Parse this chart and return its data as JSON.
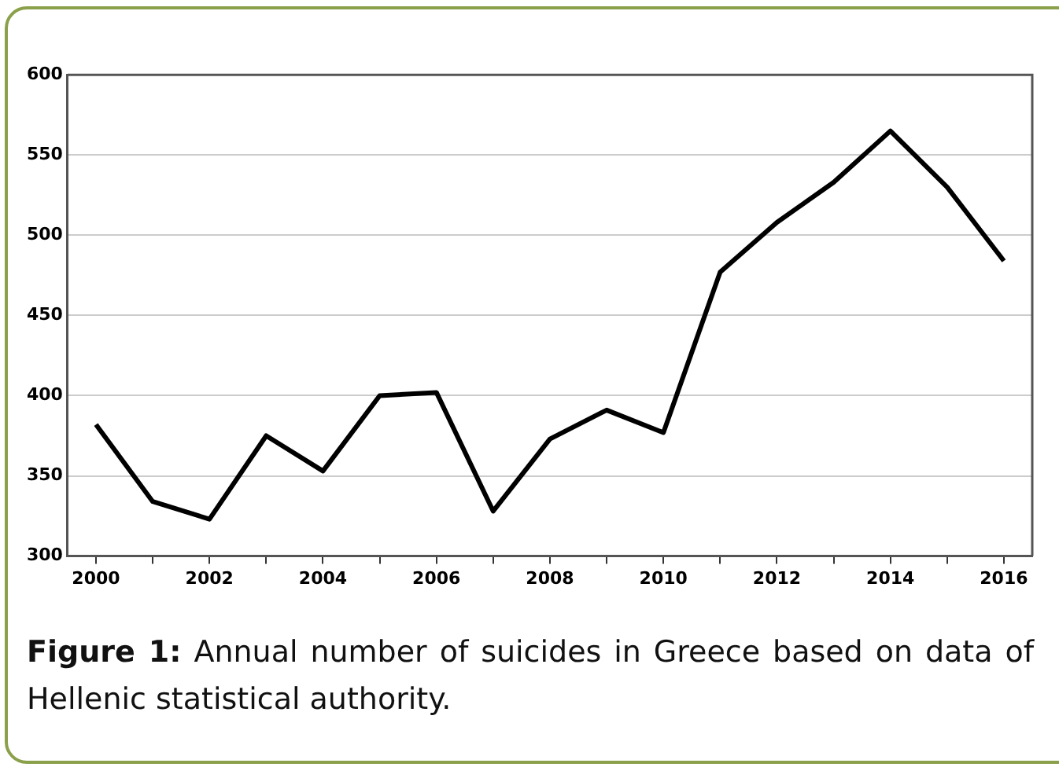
{
  "chart_data": {
    "type": "line",
    "x": [
      2000,
      2001,
      2002,
      2003,
      2004,
      2005,
      2006,
      2007,
      2008,
      2009,
      2010,
      2011,
      2012,
      2013,
      2014,
      2015,
      2016
    ],
    "series": [
      {
        "color": "#000000",
        "values": [
          382,
          334,
          323,
          375,
          353,
          400,
          402,
          328,
          373,
          391,
          377,
          477,
          508,
          533,
          565,
          530,
          484
        ]
      }
    ],
    "xlim": [
      1999.5,
      2016.5
    ],
    "xticks": [
      2000,
      {
        "value": 2001,
        "label": null
      },
      2002,
      {
        "value": 2003,
        "label": null
      },
      2004,
      {
        "value": 2005,
        "label": null
      },
      2006,
      {
        "value": 2007,
        "label": null
      },
      2008,
      {
        "value": 2009,
        "label": null
      },
      2010,
      {
        "value": 2011,
        "label": null
      },
      2012,
      {
        "value": 2013,
        "label": null
      },
      2014,
      {
        "value": 2015,
        "label": null
      },
      2016
    ],
    "ylim": [
      300,
      600
    ],
    "yticks": [
      300,
      350,
      400,
      450,
      500,
      550,
      600
    ],
    "grid": "y",
    "legend": false,
    "marker": "none",
    "line_style": "solid",
    "annotations": [
      "Figure 1:",
      "Annual number of suicides in Greece based on data of Hellenic statistical authority."
    ]
  }
}
